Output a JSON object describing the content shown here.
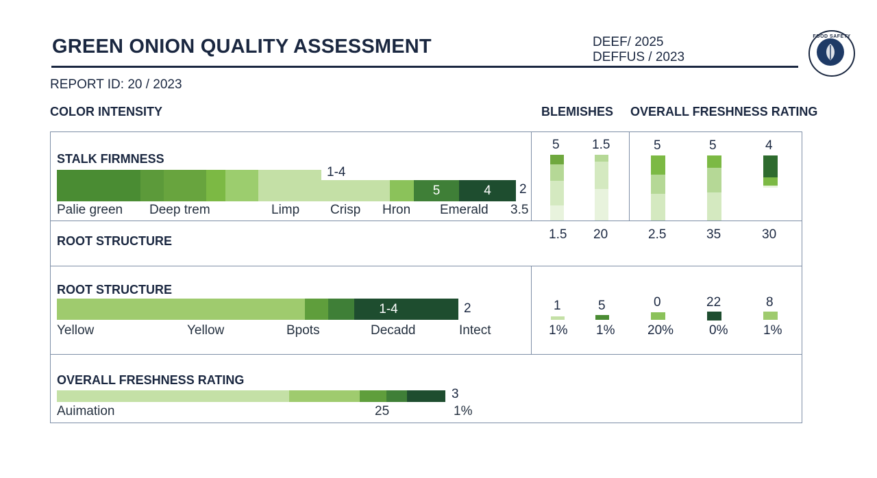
{
  "header": {
    "title": "GREEN ONION QUALITY ASSESSMENT",
    "meta_line1": "DEEF/ 2025",
    "meta_line2": "DEFFUS / 2023",
    "report_id": "REPORT ID: 20 / 2023",
    "seal_text": "FOOD SAFETY"
  },
  "section_headers": {
    "color_intensity": "COLOR INTENSITY",
    "blemishes": "BLEMISHES",
    "overall": "OVERALL FRESHNESS RATING"
  },
  "colors": {
    "pale": "#c4e0a6",
    "light": "#a9d38a",
    "mid": "#8bc25a",
    "green": "#6fa83e",
    "deep": "#4a8c33",
    "dark": "#2e6b2e",
    "darkest": "#1e4d2f",
    "border": "#7d8ea6",
    "navy": "#1a2740"
  },
  "chart_data": [
    {
      "type": "bar",
      "title": "STALK FIRMNESS",
      "segment_labels": [
        "",
        "",
        "",
        "",
        "",
        "",
        "1-4",
        "",
        "5",
        "4"
      ],
      "end_value": "2",
      "end_value_2": "3.5",
      "captions": [
        "Palie green",
        "Deep trem",
        "Limp",
        "Crisp",
        "Hron",
        "Emerald"
      ]
    },
    {
      "type": "bar",
      "title": "ROOT STRUCTURE",
      "secondary_title": "ROOT STRUCTURE",
      "segment_labels": [
        "",
        "",
        "",
        "1-4"
      ],
      "end_value": "2",
      "captions": [
        "Yellow",
        "Yellow",
        "Bpots",
        "Decadd",
        "Intect"
      ]
    },
    {
      "type": "bar",
      "title": "OVERALL FRESHNESS RATING",
      "end_value": "3",
      "captions": [
        "Auimation",
        "25",
        "1%"
      ]
    },
    {
      "type": "bar",
      "title": "BLEMISHES",
      "series": [
        {
          "top": "5",
          "bottom": "1.5"
        },
        {
          "top": "1.5",
          "bottom": "20"
        }
      ]
    },
    {
      "type": "bar",
      "title": "OVERALL FRESHNESS RATING",
      "series": [
        {
          "top": "5",
          "bottom": "2.5"
        },
        {
          "top": "5",
          "bottom": "35"
        },
        {
          "top": "4",
          "bottom": "30"
        }
      ]
    },
    {
      "type": "bar",
      "series": [
        {
          "top": "1",
          "bottom": "1%"
        },
        {
          "top": "5",
          "bottom": "1%"
        },
        {
          "top": "0",
          "bottom": "20%"
        },
        {
          "top": "22",
          "bottom": "0%"
        },
        {
          "top": "8",
          "bottom": "1%"
        }
      ]
    }
  ]
}
